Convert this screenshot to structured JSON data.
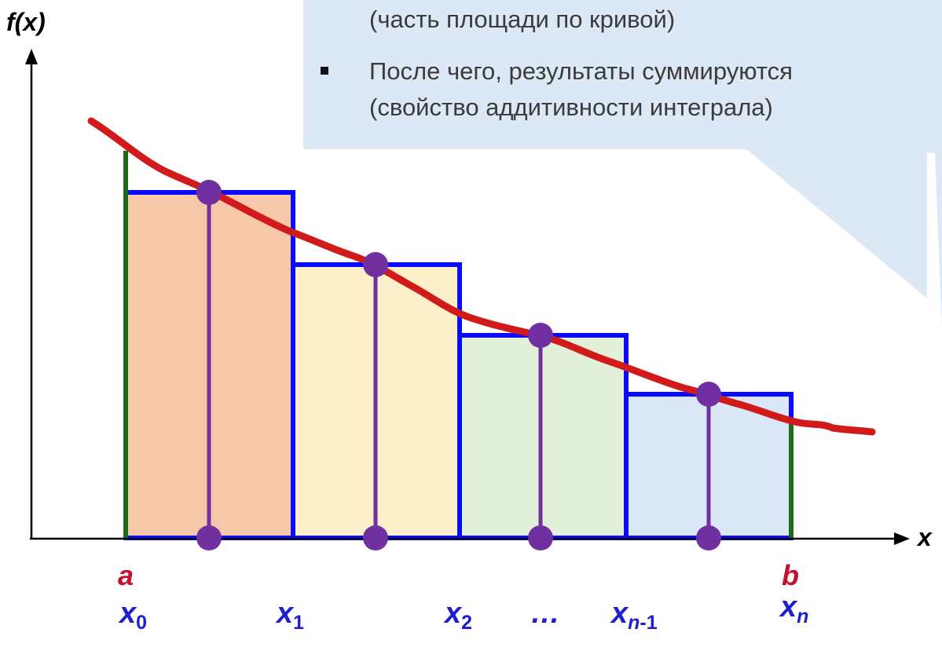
{
  "callout": {
    "line1": "(часть площади по кривой)",
    "bullet_text_1": "После чего, результаты суммируются",
    "bullet_text_2": "(свойство аддитивности интеграла)",
    "background": "#dce8f5"
  },
  "axes": {
    "y_label": "f(x)",
    "x_label": "x"
  },
  "interval": {
    "a": "a",
    "b": "b"
  },
  "nodes": {
    "x0": {
      "base": "x",
      "sub": "0"
    },
    "x1": {
      "base": "x",
      "sub": "1"
    },
    "x2": {
      "base": "x",
      "sub": "2"
    },
    "dots": "…",
    "xn1": {
      "base": "x",
      "sub_var": "n",
      "sub_rest": "-1"
    },
    "xn": {
      "base": "x",
      "sub_var": "n"
    }
  },
  "colors": {
    "curve": "#d11a1a",
    "rect_outline": "#0a0aff",
    "midpoint": "#7030a0",
    "bound": "#1a6b1a",
    "label_x": "#1f1fd0",
    "label_ab": "#c8102e",
    "rect_fills": [
      "#f6c7a9",
      "#fdefc9",
      "#e2efd9",
      "#dae7f6"
    ]
  }
}
